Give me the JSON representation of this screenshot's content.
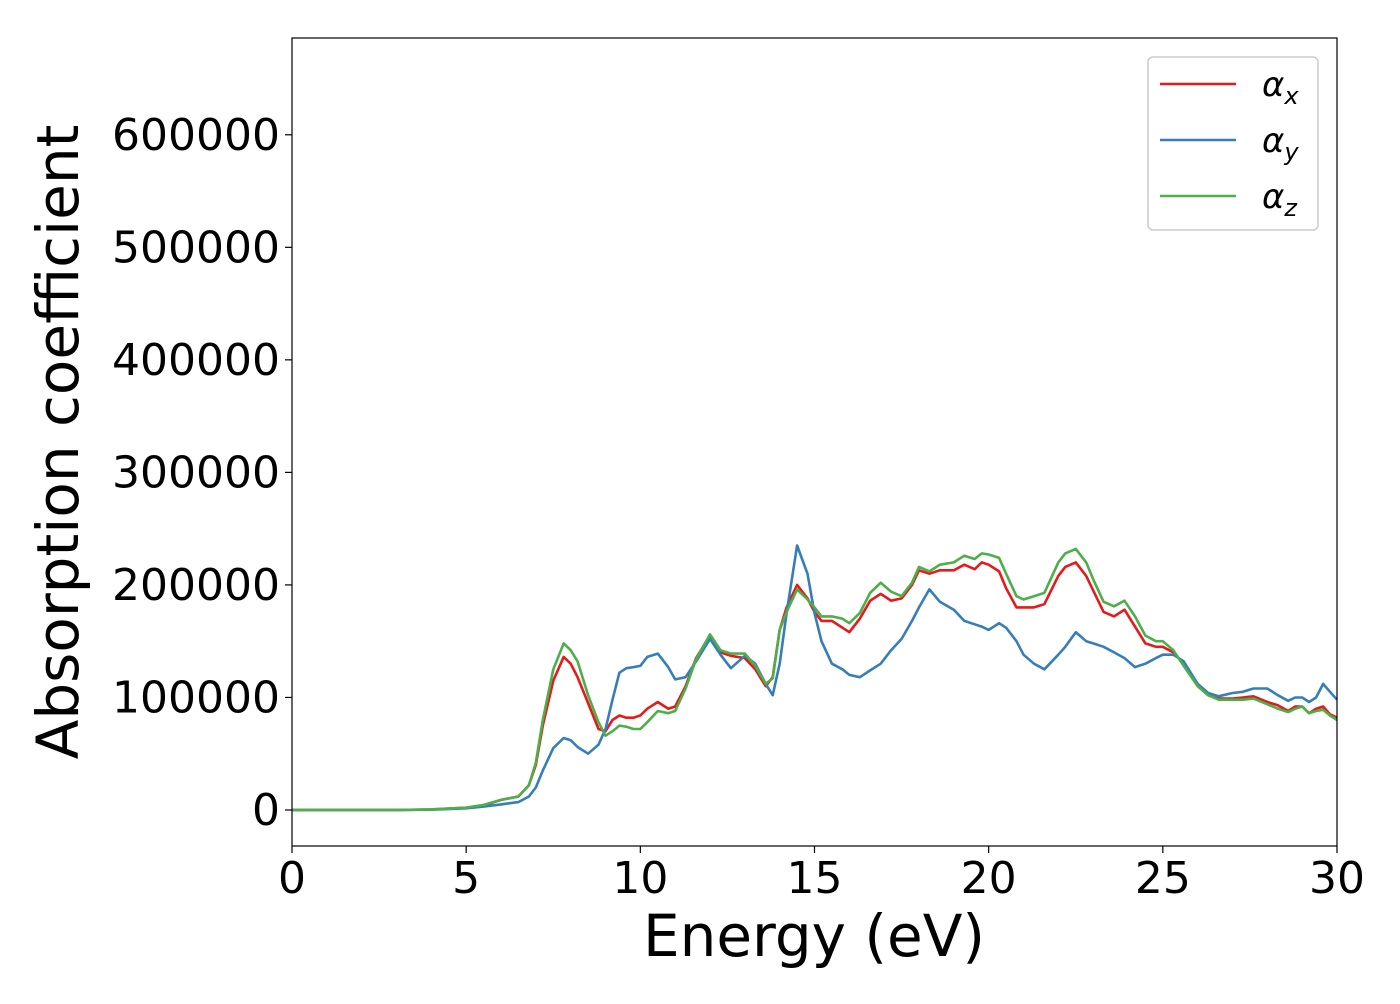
{
  "chart_data": {
    "type": "line",
    "xlabel": "Energy (eV)",
    "ylabel": "Absorption coefficient",
    "xlim": [
      0,
      30
    ],
    "ylim": [
      -32000,
      686000
    ],
    "x_ticks": [
      0,
      5,
      10,
      15,
      20,
      25,
      30
    ],
    "y_ticks": [
      0,
      100000,
      200000,
      300000,
      400000,
      500000,
      600000
    ],
    "grid": false,
    "legend_position": "top-right",
    "series": [
      {
        "name": "α",
        "subscript": "x",
        "color": "#e41a1c",
        "x": [
          0,
          1,
          2,
          3,
          4,
          5,
          5.5,
          6,
          6.5,
          6.8,
          7,
          7.2,
          7.5,
          7.8,
          8,
          8.2,
          8.5,
          8.8,
          9,
          9.2,
          9.4,
          9.6,
          9.8,
          10,
          10.2,
          10.5,
          10.8,
          11,
          11.3,
          11.6,
          12,
          12.3,
          12.6,
          13,
          13.3,
          13.6,
          13.8,
          14,
          14.2,
          14.5,
          14.8,
          15,
          15.2,
          15.5,
          15.8,
          16,
          16.3,
          16.6,
          16.9,
          17.2,
          17.5,
          17.8,
          18,
          18.3,
          18.6,
          19,
          19.3,
          19.6,
          19.8,
          20,
          20.3,
          20.5,
          20.8,
          21,
          21.3,
          21.6,
          22,
          22.2,
          22.5,
          22.8,
          23,
          23.3,
          23.6,
          23.9,
          24.2,
          24.5,
          24.8,
          25,
          25.3,
          25.6,
          26,
          26.3,
          26.6,
          27,
          27.3,
          27.6,
          28,
          28.3,
          28.6,
          28.8,
          29,
          29.2,
          29.4,
          29.6,
          29.8,
          30
        ],
        "values": [
          0,
          0,
          0,
          0,
          500,
          2000,
          4000,
          9000,
          12000,
          22000,
          40000,
          75000,
          115000,
          136000,
          130000,
          118000,
          95000,
          72000,
          70000,
          80000,
          84000,
          82000,
          82000,
          84000,
          90000,
          96000,
          90000,
          92000,
          110000,
          135000,
          155000,
          140000,
          137000,
          135000,
          125000,
          110000,
          118000,
          160000,
          180000,
          200000,
          188000,
          176000,
          168000,
          168000,
          162000,
          158000,
          170000,
          186000,
          192000,
          186000,
          188000,
          200000,
          213000,
          210000,
          213000,
          213000,
          218000,
          214000,
          220000,
          218000,
          212000,
          197000,
          180000,
          180000,
          180000,
          183000,
          208000,
          216000,
          220000,
          208000,
          195000,
          176000,
          172000,
          178000,
          163000,
          148000,
          145000,
          145000,
          140000,
          130000,
          110000,
          102000,
          99000,
          99000,
          100000,
          101000,
          96000,
          93000,
          88000,
          92000,
          92000,
          86000,
          90000,
          92000,
          85000,
          82000
        ]
      },
      {
        "name": "α",
        "subscript": "y",
        "color": "#377eb8",
        "x": [
          0,
          1,
          2,
          3,
          4,
          5,
          5.5,
          6,
          6.5,
          6.8,
          7,
          7.2,
          7.5,
          7.8,
          8,
          8.2,
          8.5,
          8.8,
          9,
          9.2,
          9.4,
          9.6,
          9.8,
          10,
          10.2,
          10.5,
          10.8,
          11,
          11.3,
          11.6,
          12,
          12.3,
          12.6,
          13,
          13.3,
          13.6,
          13.8,
          14,
          14.2,
          14.5,
          14.8,
          15,
          15.2,
          15.5,
          15.8,
          16,
          16.3,
          16.6,
          16.9,
          17.2,
          17.5,
          17.8,
          18,
          18.3,
          18.6,
          19,
          19.3,
          19.6,
          19.8,
          20,
          20.3,
          20.5,
          20.8,
          21,
          21.3,
          21.6,
          22,
          22.2,
          22.5,
          22.8,
          23,
          23.3,
          23.6,
          23.9,
          24.2,
          24.5,
          24.8,
          25,
          25.3,
          25.6,
          26,
          26.3,
          26.6,
          27,
          27.3,
          27.6,
          28,
          28.3,
          28.6,
          28.8,
          29,
          29.2,
          29.4,
          29.6,
          29.8,
          30
        ],
        "values": [
          0,
          0,
          0,
          0,
          300,
          1500,
          3000,
          5000,
          7000,
          12000,
          20000,
          35000,
          55000,
          64000,
          62000,
          56000,
          50000,
          58000,
          72000,
          98000,
          122000,
          126000,
          127000,
          128000,
          136000,
          139000,
          127000,
          116000,
          118000,
          132000,
          152000,
          138000,
          126000,
          137000,
          130000,
          112000,
          102000,
          130000,
          175000,
          235000,
          210000,
          175000,
          150000,
          130000,
          125000,
          120000,
          118000,
          124000,
          130000,
          142000,
          152000,
          168000,
          180000,
          196000,
          185000,
          178000,
          168000,
          165000,
          163000,
          160000,
          166000,
          162000,
          150000,
          138000,
          130000,
          125000,
          138000,
          145000,
          158000,
          150000,
          148000,
          145000,
          140000,
          135000,
          127000,
          130000,
          135000,
          138000,
          138000,
          132000,
          112000,
          104000,
          101000,
          104000,
          105000,
          108000,
          108000,
          102000,
          97000,
          100000,
          100000,
          96000,
          100000,
          112000,
          105000,
          98000
        ]
      },
      {
        "name": "α",
        "subscript": "z",
        "color": "#4daf4a",
        "x": [
          0,
          1,
          2,
          3,
          4,
          5,
          5.5,
          6,
          6.5,
          6.8,
          7,
          7.2,
          7.5,
          7.8,
          8,
          8.2,
          8.5,
          8.8,
          9,
          9.2,
          9.4,
          9.6,
          9.8,
          10,
          10.2,
          10.5,
          10.8,
          11,
          11.3,
          11.6,
          12,
          12.3,
          12.6,
          13,
          13.3,
          13.6,
          13.8,
          14,
          14.2,
          14.5,
          14.8,
          15,
          15.2,
          15.5,
          15.8,
          16,
          16.3,
          16.6,
          16.9,
          17.2,
          17.5,
          17.8,
          18,
          18.3,
          18.6,
          19,
          19.3,
          19.6,
          19.8,
          20,
          20.3,
          20.5,
          20.8,
          21,
          21.3,
          21.6,
          22,
          22.2,
          22.5,
          22.8,
          23,
          23.3,
          23.6,
          23.9,
          24.2,
          24.5,
          24.8,
          25,
          25.3,
          25.6,
          26,
          26.3,
          26.6,
          27,
          27.3,
          27.6,
          28,
          28.3,
          28.6,
          28.8,
          29,
          29.2,
          29.4,
          29.6,
          29.8,
          30
        ],
        "values": [
          0,
          0,
          0,
          0,
          500,
          2000,
          4500,
          9000,
          12000,
          22000,
          42000,
          80000,
          125000,
          148000,
          142000,
          132000,
          102000,
          78000,
          66000,
          70000,
          75000,
          74000,
          72000,
          72000,
          78000,
          88000,
          86000,
          88000,
          108000,
          134000,
          156000,
          142000,
          139000,
          139000,
          128000,
          112000,
          117000,
          160000,
          176000,
          196000,
          187000,
          180000,
          172000,
          172000,
          170000,
          166000,
          175000,
          193000,
          202000,
          194000,
          190000,
          202000,
          216000,
          212000,
          218000,
          220000,
          226000,
          223000,
          228000,
          227000,
          224000,
          210000,
          190000,
          187000,
          190000,
          193000,
          220000,
          228000,
          232000,
          220000,
          205000,
          185000,
          181000,
          186000,
          172000,
          155000,
          150000,
          150000,
          142000,
          128000,
          110000,
          102000,
          98000,
          98000,
          98000,
          99000,
          94000,
          90000,
          87000,
          90000,
          92000,
          86000,
          88000,
          89000,
          84000,
          80000
        ]
      }
    ]
  }
}
